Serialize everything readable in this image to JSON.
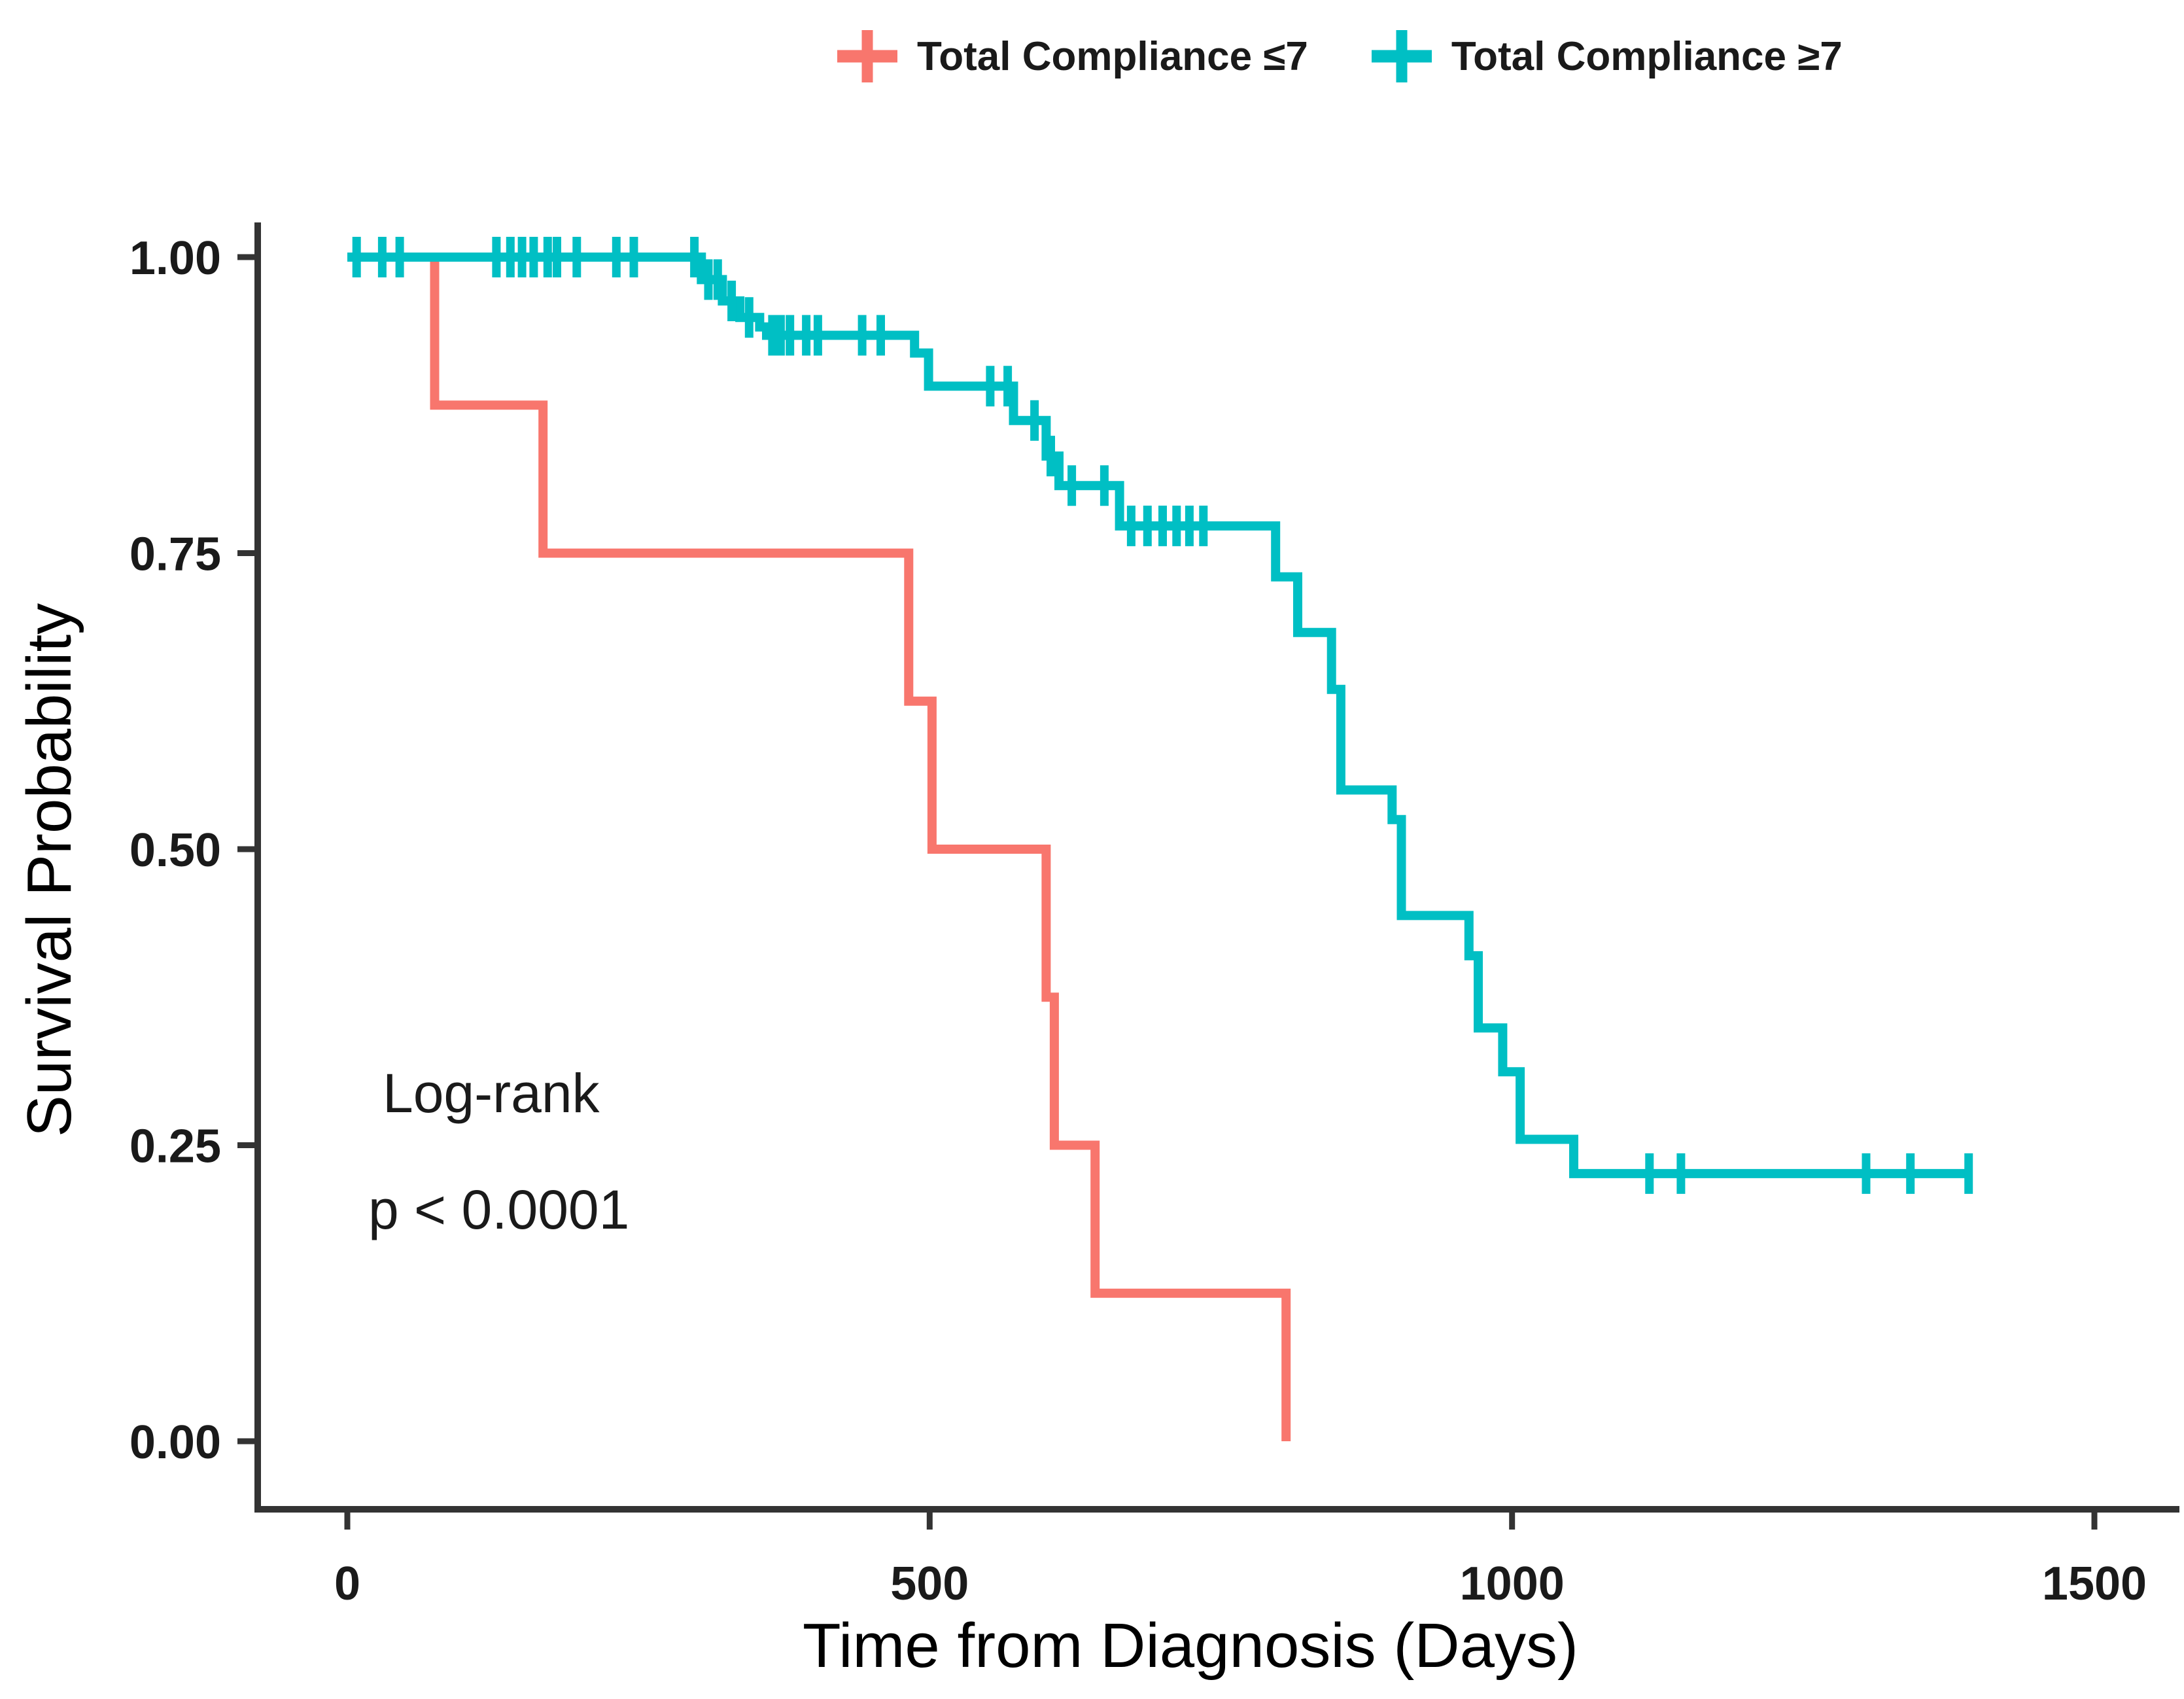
{
  "figure": {
    "background": "#ffffff"
  },
  "legend": {
    "position": "top",
    "items": [
      {
        "label": "Total Compliance ≤7",
        "marker": "plus-icon",
        "color": "#F8766D"
      },
      {
        "label": "Total Compliance ≥7",
        "marker": "plus-icon",
        "color": "#00BFC4"
      }
    ]
  },
  "chart_data": {
    "type": "line",
    "subtype": "kaplan-meier-step",
    "title": "",
    "xlabel": "Time from Diagnosis (Days)",
    "ylabel": "Survival Probability",
    "xlim": [
      0,
      1575
    ],
    "ylim": [
      0,
      1
    ],
    "grid": false,
    "legend_position": "top",
    "xticks": {
      "values": [
        0,
        500,
        1000,
        1500
      ],
      "labels": [
        "0",
        "500",
        "1000",
        "1500"
      ]
    },
    "yticks": {
      "values": [
        0,
        0.25,
        0.5,
        0.75,
        1
      ],
      "labels": [
        "0.00",
        "0.25",
        "0.50",
        "0.75",
        "1.00"
      ]
    },
    "annotation": {
      "line1": "Log-rank",
      "line2": "p < 0.0001"
    },
    "axis_color": "#333333",
    "series": [
      {
        "name": "Total Compliance ≤7",
        "color": "#F8766D",
        "start": [
          0,
          1.0
        ],
        "steps": [
          [
            75,
            0.875
          ],
          [
            168,
            0.75
          ],
          [
            482,
            0.625
          ],
          [
            502,
            0.5
          ],
          [
            600,
            0.375
          ],
          [
            607,
            0.25
          ],
          [
            642,
            0.125
          ],
          [
            806,
            0.0
          ]
        ],
        "end_day": 806,
        "censors": []
      },
      {
        "name": "Total Compliance ≥7",
        "color": "#00BFC4",
        "start": [
          0,
          1.0
        ],
        "steps": [
          [
            304,
            0.981
          ],
          [
            322,
            0.963
          ],
          [
            337,
            0.949
          ],
          [
            354,
            0.941
          ],
          [
            360,
            0.934
          ],
          [
            487,
            0.919
          ],
          [
            499,
            0.891
          ],
          [
            572,
            0.862
          ],
          [
            600,
            0.832
          ],
          [
            611,
            0.807
          ],
          [
            663,
            0.773
          ],
          [
            797,
            0.73
          ],
          [
            816,
            0.683
          ],
          [
            845,
            0.635
          ],
          [
            853,
            0.55
          ],
          [
            897,
            0.525
          ],
          [
            905,
            0.444
          ],
          [
            963,
            0.41
          ],
          [
            971,
            0.349
          ],
          [
            992,
            0.312
          ],
          [
            1007,
            0.255
          ],
          [
            1053,
            0.226
          ]
        ],
        "end_day": 1393,
        "censors": [
          [
            8,
            1.0
          ],
          [
            30,
            1.0
          ],
          [
            45,
            1.0
          ],
          [
            128,
            1.0
          ],
          [
            140,
            1.0
          ],
          [
            150,
            1.0
          ],
          [
            160,
            1.0
          ],
          [
            172,
            1.0
          ],
          [
            180,
            1.0
          ],
          [
            197,
            1.0
          ],
          [
            231,
            1.0
          ],
          [
            246,
            1.0
          ],
          [
            298,
            1.0
          ],
          [
            310,
            0.981
          ],
          [
            318,
            0.981
          ],
          [
            330,
            0.963
          ],
          [
            345,
            0.949
          ],
          [
            365,
            0.934
          ],
          [
            372,
            0.934
          ],
          [
            380,
            0.934
          ],
          [
            394,
            0.934
          ],
          [
            404,
            0.934
          ],
          [
            442,
            0.934
          ],
          [
            458,
            0.934
          ],
          [
            552,
            0.891
          ],
          [
            567,
            0.891
          ],
          [
            590,
            0.862
          ],
          [
            604,
            0.832
          ],
          [
            622,
            0.807
          ],
          [
            650,
            0.807
          ],
          [
            673,
            0.773
          ],
          [
            687,
            0.773
          ],
          [
            700,
            0.773
          ],
          [
            712,
            0.773
          ],
          [
            723,
            0.773
          ],
          [
            735,
            0.773
          ],
          [
            1118,
            0.226
          ],
          [
            1145,
            0.226
          ],
          [
            1304,
            0.226
          ],
          [
            1342,
            0.226
          ],
          [
            1392,
            0.226
          ]
        ]
      }
    ]
  }
}
